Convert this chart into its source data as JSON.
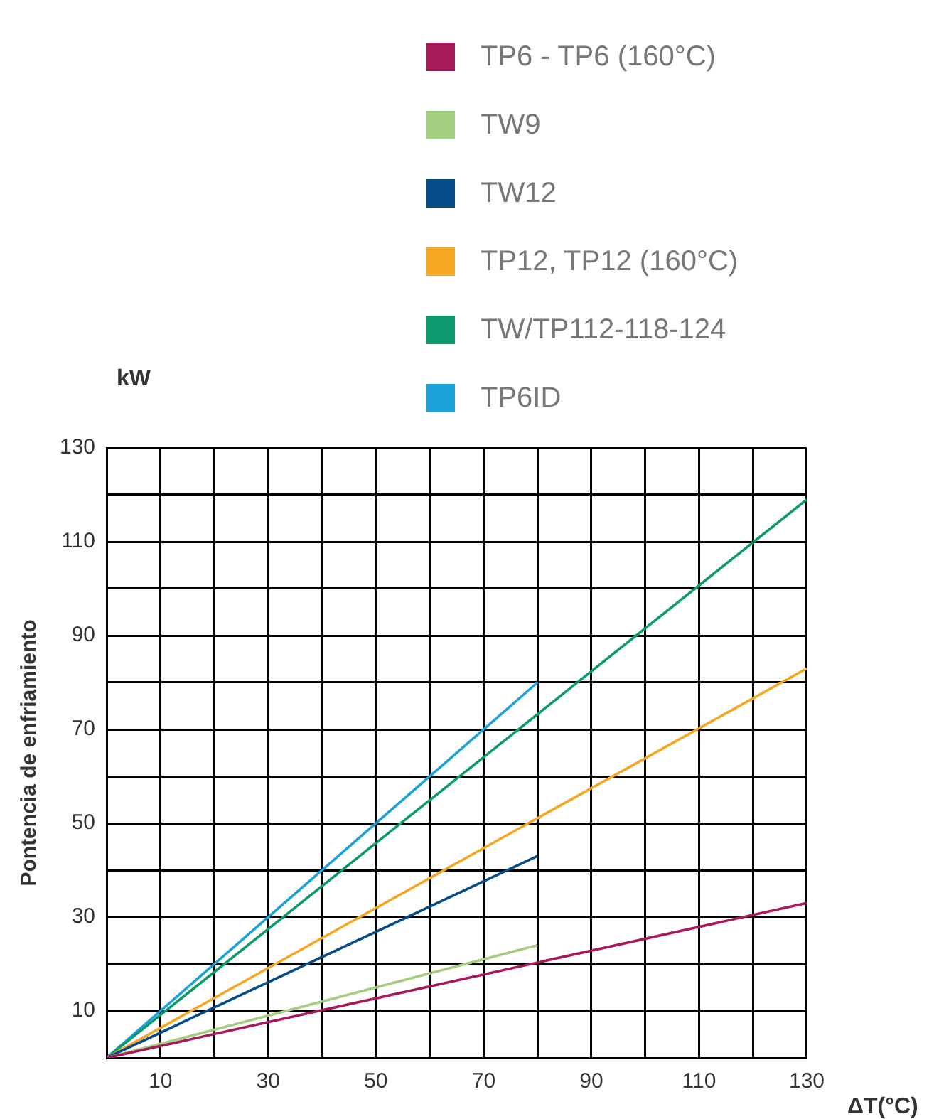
{
  "chart_data": {
    "type": "line",
    "xlabel": "ΔT(°C)",
    "ylabel": "Pontencia de enfriamiento",
    "annotations": [
      "kW"
    ],
    "series": [
      {
        "name": "TP6 - TP6 (160°C)",
        "color": "#a8195a",
        "x": [
          0,
          130
        ],
        "values": [
          0,
          33
        ]
      },
      {
        "name": "TW9",
        "color": "#a3cd7f",
        "x": [
          0,
          80
        ],
        "values": [
          0,
          24
        ]
      },
      {
        "name": "TW12",
        "color": "#054d8a",
        "x": [
          0,
          80
        ],
        "values": [
          0,
          43
        ]
      },
      {
        "name": "TP12, TP12 (160°C)",
        "color": "#f5a623",
        "x": [
          0,
          130
        ],
        "values": [
          0,
          83
        ]
      },
      {
        "name": "TW/TP112-118-124",
        "color": "#0a9a6e",
        "x": [
          0,
          130
        ],
        "values": [
          0,
          119
        ]
      },
      {
        "name": "TP6ID",
        "color": "#1aa2d8",
        "x": [
          0,
          80
        ],
        "values": [
          0,
          80
        ]
      }
    ],
    "xlim": [
      0,
      130
    ],
    "xticks": [
      {
        "value": 0,
        "label": null
      },
      10,
      {
        "value": 20,
        "label": null
      },
      30,
      {
        "value": 40,
        "label": null
      },
      50,
      {
        "value": 60,
        "label": null
      },
      70,
      {
        "value": 80,
        "label": null
      },
      90,
      {
        "value": 100,
        "label": null
      },
      110,
      {
        "value": 120,
        "label": null
      },
      130
    ],
    "ylim": [
      0,
      130
    ],
    "yticks": [
      {
        "value": 0,
        "label": null
      },
      10,
      {
        "value": 20,
        "label": null
      },
      30,
      {
        "value": 40,
        "label": null
      },
      50,
      {
        "value": 60,
        "label": null
      },
      70,
      {
        "value": 80,
        "label": null
      },
      90,
      {
        "value": 100,
        "label": null
      },
      110,
      {
        "value": 120,
        "label": null
      },
      130
    ],
    "grid": true,
    "legend": "top"
  }
}
